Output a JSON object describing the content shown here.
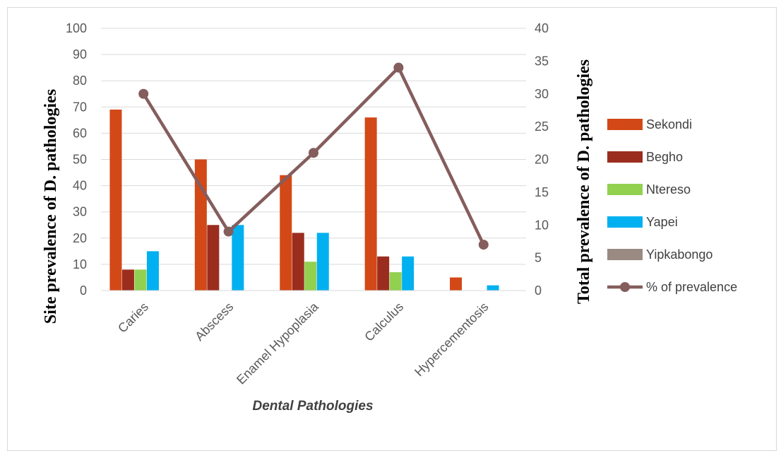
{
  "chart_data": {
    "type": "bar",
    "categories": [
      "Caries",
      "Abscess",
      "Enamel Hypoplasia",
      "Calculus",
      "Hypercementosis"
    ],
    "series": [
      {
        "name": "Sekondi",
        "values": [
          69,
          50,
          44,
          66,
          5
        ],
        "color": "#d34817"
      },
      {
        "name": "Begho",
        "values": [
          8,
          25,
          22,
          13,
          0
        ],
        "color": "#9b2d1f"
      },
      {
        "name": "Ntereso",
        "values": [
          8,
          0,
          11,
          7,
          0
        ],
        "color": "#92d050"
      },
      {
        "name": "Yapei",
        "values": [
          15,
          25,
          22,
          13,
          2
        ],
        "color": "#00b0f0"
      },
      {
        "name": "Yipkabongo",
        "values": [
          0,
          0,
          0,
          0,
          0
        ],
        "color": "#998a82"
      }
    ],
    "line_series": {
      "name": "% of prevalence",
      "values": [
        30,
        9,
        21,
        34,
        7
      ],
      "color": "#855d5d",
      "axis": "secondary"
    },
    "xlabel": "Dental Pathologies",
    "ylabel": "Site prevalence of D. pathologies",
    "y2label": "Total prevalence of D. pathologies",
    "ylim": [
      0,
      100
    ],
    "y2lim": [
      0,
      40
    ],
    "yticks": [
      "0",
      "10",
      "20",
      "30",
      "40",
      "50",
      "60",
      "70",
      "80",
      "90",
      "100"
    ],
    "y2ticks": [
      "0",
      "5",
      "10",
      "15",
      "20",
      "25",
      "30",
      "35",
      "40"
    ],
    "grid": true,
    "legend_position": "right"
  }
}
